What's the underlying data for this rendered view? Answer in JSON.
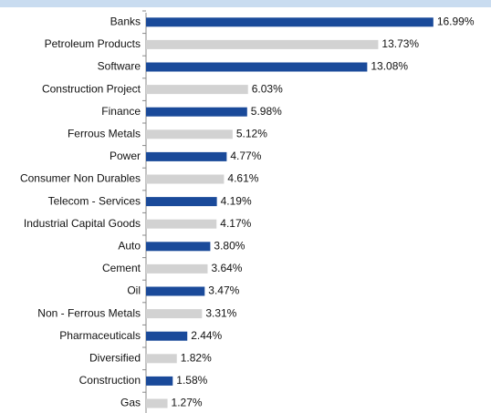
{
  "chart_data": {
    "type": "barh",
    "categories": [
      "Banks",
      "Petroleum Products",
      "Software",
      "Construction Project",
      "Finance",
      "Ferrous Metals",
      "Power",
      "Consumer Non Durables",
      "Telecom - Services",
      "Industrial Capital Goods",
      "Auto",
      "Cement",
      "Oil",
      "Non - Ferrous Metals",
      "Pharmaceuticals",
      "Diversified",
      "Construction",
      "Gas"
    ],
    "values": [
      16.99,
      13.73,
      13.08,
      6.03,
      5.98,
      5.12,
      4.77,
      4.61,
      4.19,
      4.17,
      3.8,
      3.64,
      3.47,
      3.31,
      2.44,
      1.82,
      1.58,
      1.27
    ],
    "value_labels": [
      "16.99%",
      "13.73%",
      "13.08%",
      "6.03%",
      "5.98%",
      "5.12%",
      "4.77%",
      "4.61%",
      "4.19%",
      "4.17%",
      "3.80%",
      "3.64%",
      "3.47%",
      "3.31%",
      "2.44%",
      "1.82%",
      "1.58%",
      "1.27%"
    ],
    "colors": [
      "#1a4a9a",
      "#d2d2d2",
      "#1a4a9a",
      "#d2d2d2",
      "#1a4a9a",
      "#d2d2d2",
      "#1a4a9a",
      "#d2d2d2",
      "#1a4a9a",
      "#d2d2d2",
      "#1a4a9a",
      "#d2d2d2",
      "#1a4a9a",
      "#d2d2d2",
      "#1a4a9a",
      "#d2d2d2",
      "#1a4a9a",
      "#d2d2d2"
    ],
    "xlim": [
      0,
      17
    ]
  }
}
